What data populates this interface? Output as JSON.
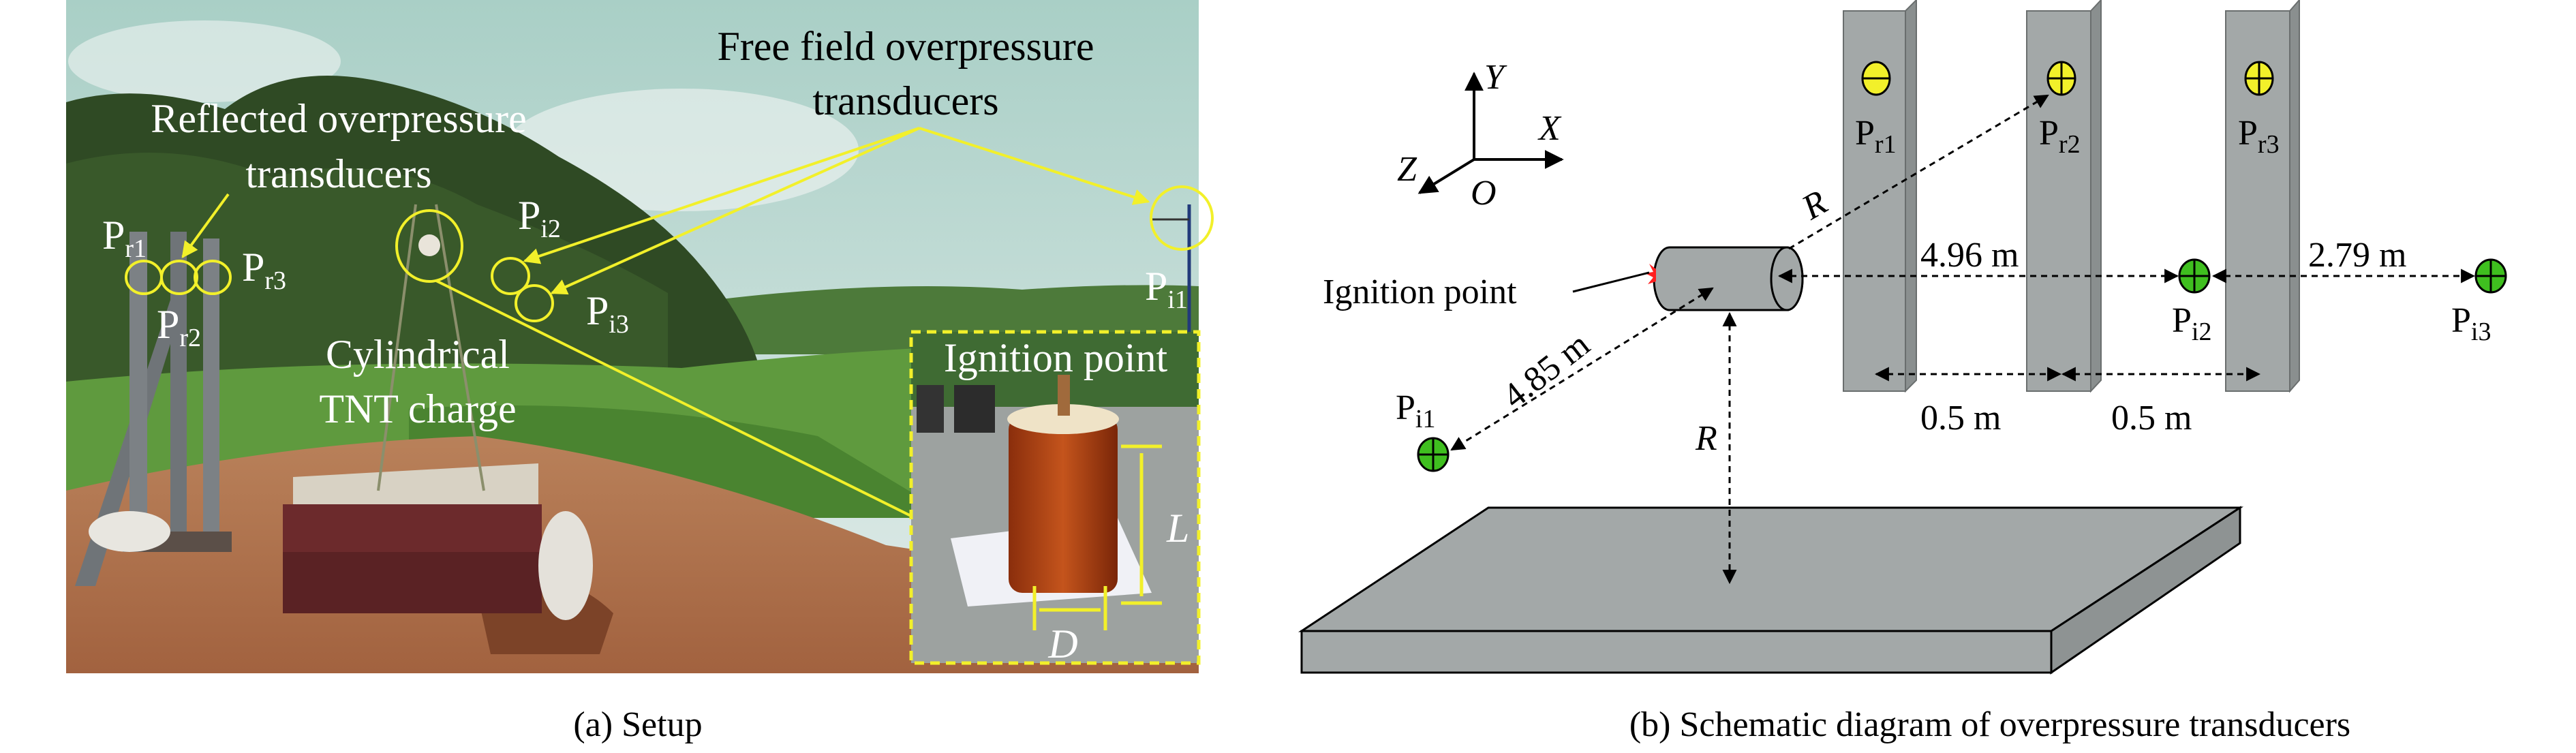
{
  "panel_a": {
    "caption": "(a) Setup",
    "labels": {
      "free_field_line1": "Free field overpressure",
      "free_field_line2": "transducers",
      "reflected_line1": "Reflected overpressure",
      "reflected_line2": "transducers",
      "charge_line1": "Cylindrical",
      "charge_line2": "TNT charge",
      "ignition_point": "Ignition point",
      "length_symbol": "L",
      "diameter_symbol": "D"
    },
    "transducers": {
      "pr1": {
        "main": "P",
        "sub": "r1"
      },
      "pr2": {
        "main": "P",
        "sub": "r2"
      },
      "pr3": {
        "main": "P",
        "sub": "r3"
      },
      "pi1": {
        "main": "P",
        "sub": "i1"
      },
      "pi2": {
        "main": "P",
        "sub": "i2"
      },
      "pi3": {
        "main": "P",
        "sub": "i3"
      }
    },
    "colors": {
      "annotation": "#f2f02a"
    }
  },
  "panel_b": {
    "caption": "(b) Schematic diagram of overpressure transducers",
    "axes": {
      "x": "X",
      "y": "Y",
      "z": "Z",
      "origin": "O"
    },
    "ignition_label": "Ignition point",
    "distances": {
      "charge_to_pi2": "4.96 m",
      "pi2_to_pi3": "2.79 m",
      "charge_to_pi1": "4.85 m",
      "spacing_1": "0.5 m",
      "spacing_2": "0.5 m",
      "standoff_reflected": "R",
      "height_of_burst": "R"
    },
    "transducers": {
      "pr1": {
        "main": "P",
        "sub": "r1"
      },
      "pr2": {
        "main": "P",
        "sub": "r2"
      },
      "pr3": {
        "main": "P",
        "sub": "r3"
      },
      "pi1": {
        "main": "P",
        "sub": "i1"
      },
      "pi2": {
        "main": "P",
        "sub": "i2"
      },
      "pi3": {
        "main": "P",
        "sub": "i3"
      }
    },
    "colors": {
      "reflected_sensor": "#f2f02a",
      "free_field_sensor": "#3fbf1f",
      "structure": "#a3a8a8"
    }
  }
}
